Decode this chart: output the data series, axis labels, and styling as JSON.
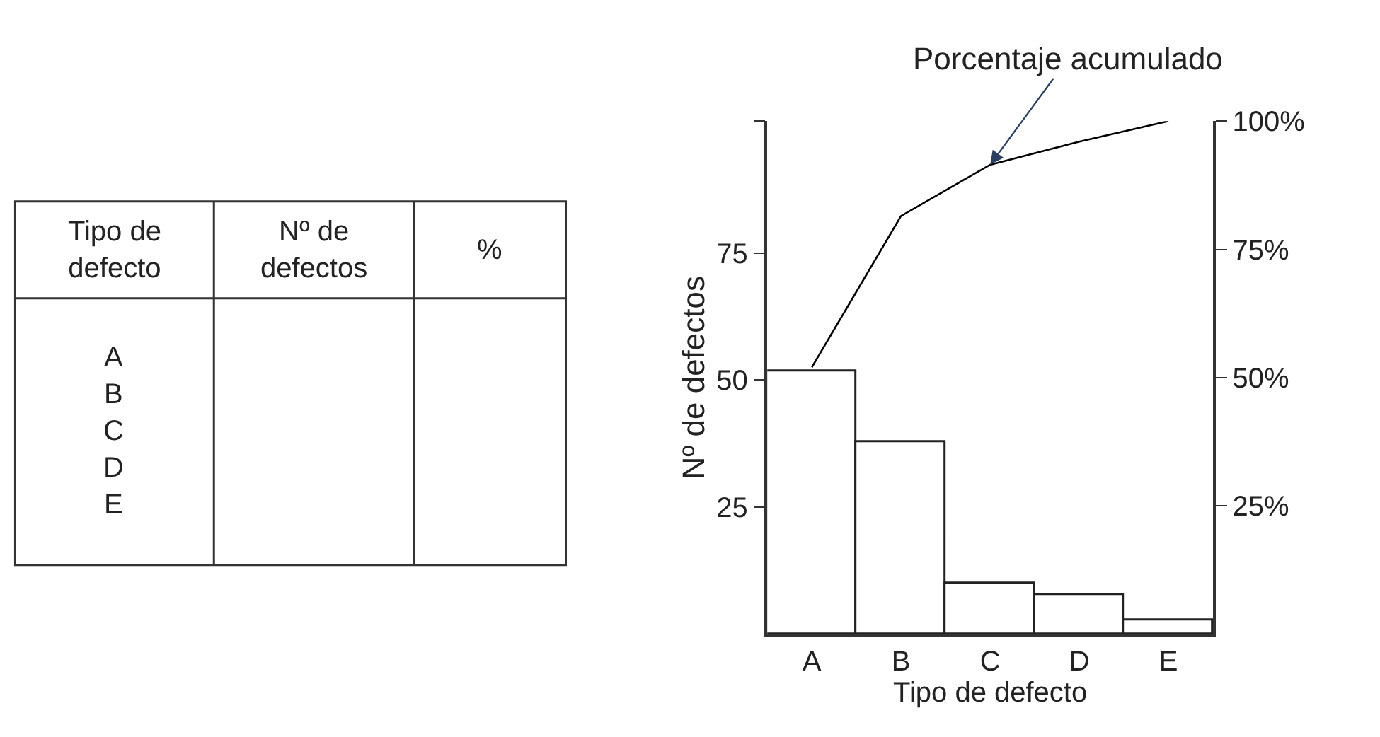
{
  "chart_data": [
    {
      "type": "other",
      "annotations": [
        "Tipo de defecto",
        "Nº de defectos",
        "%"
      ],
      "categories": [
        "A",
        "B",
        "C",
        "D",
        "E"
      ]
    },
    {
      "type": "bar",
      "categories": [
        "A",
        "B",
        "C",
        "D",
        "E"
      ],
      "xlabel": "Tipo de defecto",
      "ylabel": "Nº de defectos",
      "series": [
        {
          "type": "bar",
          "color": "#ffffff",
          "values": [
            51.7,
            37.7,
            9.9,
            7.6,
            2.7
          ]
        },
        {
          "type": "line",
          "axis": "y2",
          "color": "#000000",
          "values": [
            52,
            81.5,
            91.5,
            96,
            100
          ]
        }
      ],
      "annotations": [
        {
          "text": "Porcentaje acumulado",
          "x": "C",
          "y": 91.5
        }
      ],
      "ylim": [
        0,
        101
      ],
      "yticks": [
        25,
        50,
        75,
        {
          "value": 101,
          "label": null
        }
      ],
      "y2lim": [
        0,
        100
      ],
      "y2ticks": [
        {
          "value": 25,
          "label": "25%"
        },
        {
          "value": 50,
          "label": "50%"
        },
        {
          "value": 75,
          "label": "75%"
        },
        {
          "value": 100,
          "label": "100%"
        }
      ],
      "marker": "none",
      "line_style": "solid"
    }
  ]
}
